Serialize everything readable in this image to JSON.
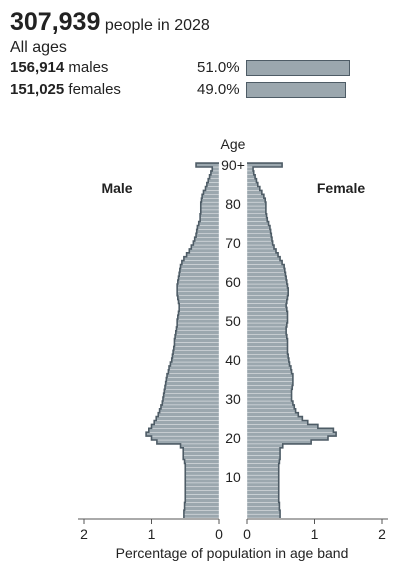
{
  "header": {
    "total": "307,939",
    "total_suffix": "people in 2028",
    "age_filter": "All ages",
    "males": {
      "count": "156,914",
      "label": "males",
      "pct_text": "51.0%",
      "pct": 51.0
    },
    "females": {
      "count": "151,025",
      "label": "females",
      "pct_text": "49.0%",
      "pct": 49.0
    }
  },
  "chart_data": {
    "type": "bar",
    "orientation": "population-pyramid",
    "age_axis_title": "Age",
    "male_label": "Male",
    "female_label": "Female",
    "xlabel": "Percentage of population in age band",
    "x_ticks_left": [
      "2",
      "1",
      "0"
    ],
    "x_ticks_right": [
      "0",
      "1",
      "2"
    ],
    "xlim": [
      0,
      2
    ],
    "age_ticks": [
      {
        "age": 10,
        "label": "10"
      },
      {
        "age": 20,
        "label": "20"
      },
      {
        "age": 30,
        "label": "30"
      },
      {
        "age": 40,
        "label": "40"
      },
      {
        "age": 50,
        "label": "50"
      },
      {
        "age": 60,
        "label": "60"
      },
      {
        "age": 70,
        "label": "70"
      },
      {
        "age": 80,
        "label": "80"
      },
      {
        "age": 90,
        "label": "90+"
      }
    ],
    "ages": [
      0,
      1,
      2,
      3,
      4,
      5,
      6,
      7,
      8,
      9,
      10,
      11,
      12,
      13,
      14,
      15,
      16,
      17,
      18,
      19,
      20,
      21,
      22,
      23,
      24,
      25,
      26,
      27,
      28,
      29,
      30,
      31,
      32,
      33,
      34,
      35,
      36,
      37,
      38,
      39,
      40,
      41,
      42,
      43,
      44,
      45,
      46,
      47,
      48,
      49,
      50,
      51,
      52,
      53,
      54,
      55,
      56,
      57,
      58,
      59,
      60,
      61,
      62,
      63,
      64,
      65,
      66,
      67,
      68,
      69,
      70,
      71,
      72,
      73,
      74,
      75,
      76,
      77,
      78,
      79,
      80,
      81,
      82,
      83,
      84,
      85,
      86,
      87,
      88,
      89,
      90
    ],
    "series": [
      {
        "name": "Male",
        "color": "#9ba7ae",
        "values": [
          0.52,
          0.52,
          0.51,
          0.51,
          0.5,
          0.5,
          0.5,
          0.5,
          0.5,
          0.5,
          0.5,
          0.5,
          0.5,
          0.5,
          0.51,
          0.53,
          0.53,
          0.53,
          0.57,
          0.92,
          1.0,
          1.08,
          1.04,
          1.0,
          0.96,
          0.93,
          0.9,
          0.88,
          0.86,
          0.84,
          0.83,
          0.82,
          0.81,
          0.8,
          0.79,
          0.78,
          0.77,
          0.75,
          0.74,
          0.72,
          0.7,
          0.69,
          0.68,
          0.67,
          0.66,
          0.66,
          0.65,
          0.64,
          0.63,
          0.62,
          0.62,
          0.61,
          0.6,
          0.59,
          0.59,
          0.6,
          0.61,
          0.62,
          0.62,
          0.62,
          0.61,
          0.6,
          0.59,
          0.58,
          0.57,
          0.55,
          0.52,
          0.48,
          0.44,
          0.41,
          0.38,
          0.36,
          0.34,
          0.33,
          0.32,
          0.3,
          0.28,
          0.28,
          0.27,
          0.27,
          0.27,
          0.26,
          0.25,
          0.23,
          0.2,
          0.18,
          0.16,
          0.14,
          0.12,
          0.1,
          0.34
        ]
      },
      {
        "name": "Female",
        "color": "#9ba7ae",
        "values": [
          0.49,
          0.49,
          0.48,
          0.48,
          0.47,
          0.47,
          0.47,
          0.47,
          0.47,
          0.47,
          0.47,
          0.47,
          0.47,
          0.47,
          0.48,
          0.49,
          0.49,
          0.49,
          0.53,
          0.95,
          1.2,
          1.32,
          1.28,
          1.05,
          0.9,
          0.82,
          0.76,
          0.72,
          0.7,
          0.68,
          0.66,
          0.66,
          0.66,
          0.67,
          0.68,
          0.68,
          0.68,
          0.66,
          0.65,
          0.63,
          0.62,
          0.61,
          0.6,
          0.6,
          0.6,
          0.6,
          0.59,
          0.58,
          0.58,
          0.59,
          0.6,
          0.6,
          0.6,
          0.59,
          0.58,
          0.59,
          0.6,
          0.61,
          0.61,
          0.6,
          0.59,
          0.58,
          0.57,
          0.56,
          0.55,
          0.52,
          0.49,
          0.46,
          0.43,
          0.4,
          0.38,
          0.37,
          0.36,
          0.35,
          0.34,
          0.32,
          0.3,
          0.29,
          0.28,
          0.28,
          0.28,
          0.27,
          0.25,
          0.22,
          0.19,
          0.16,
          0.14,
          0.12,
          0.1,
          0.09,
          0.52
        ]
      }
    ]
  }
}
